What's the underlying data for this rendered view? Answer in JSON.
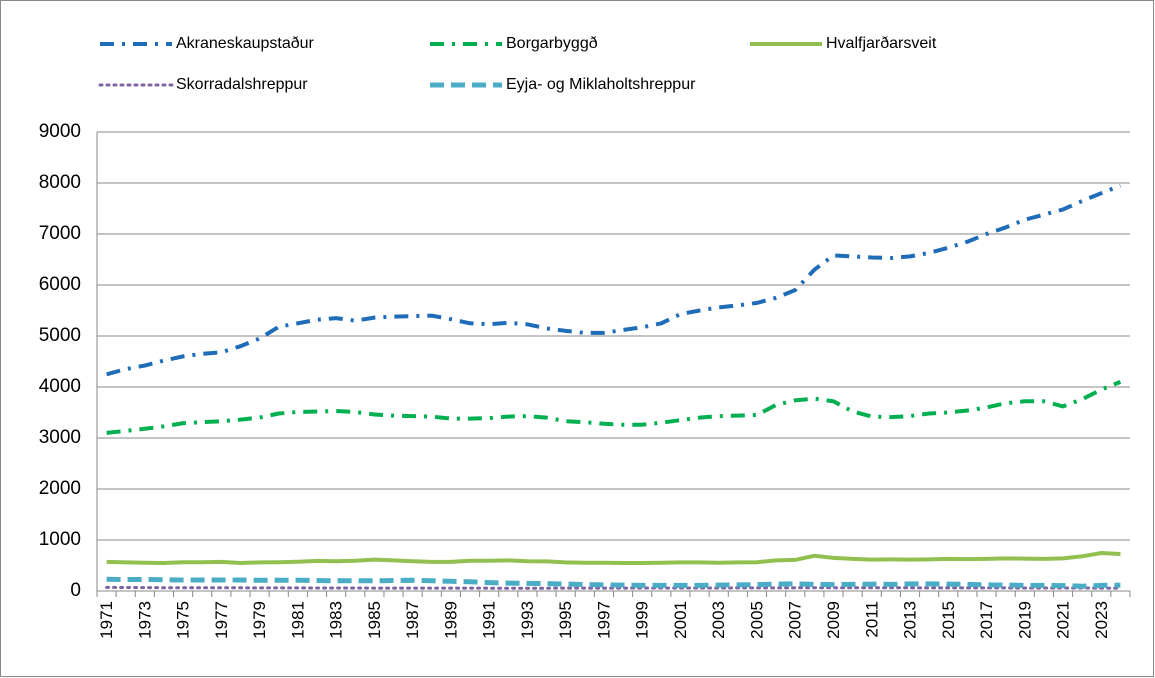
{
  "chart_data": {
    "type": "line",
    "categories": [
      "1971",
      null,
      "1973",
      null,
      "1975",
      null,
      "1977",
      null,
      "1979",
      null,
      "1981",
      null,
      "1983",
      null,
      "1985",
      null,
      "1987",
      null,
      "1989",
      null,
      "1991",
      null,
      "1993",
      null,
      "1995",
      null,
      "1997",
      null,
      "1999",
      null,
      "2001",
      null,
      "2003",
      null,
      "2005",
      null,
      "2007",
      null,
      "2009",
      null,
      "2011",
      null,
      "2013",
      null,
      "2015",
      null,
      "2017",
      null,
      "2019",
      null,
      "2021",
      null,
      "2023",
      null
    ],
    "series": [
      {
        "name": "Akraneskaupstaður",
        "color": "#1f6cb8",
        "line_style": "dash-dot",
        "values": [
          4250,
          4350,
          4420,
          4520,
          4600,
          4650,
          4680,
          4800,
          4950,
          5180,
          5250,
          5320,
          5350,
          5300,
          5360,
          5380,
          5390,
          5400,
          5330,
          5250,
          5230,
          5260,
          5230,
          5150,
          5100,
          5060,
          5060,
          5120,
          5170,
          5250,
          5430,
          5500,
          5560,
          5600,
          5650,
          5750,
          5900,
          6300,
          6580,
          6560,
          6540,
          6530,
          6560,
          6630,
          6730,
          6850,
          7000,
          7130,
          7280,
          7380,
          7480,
          7650,
          7800,
          7950
        ]
      },
      {
        "name": "Borgarbyggð",
        "color": "#00b050",
        "line_style": "dash-dot",
        "values": [
          3100,
          3140,
          3180,
          3230,
          3290,
          3310,
          3330,
          3360,
          3400,
          3480,
          3510,
          3520,
          3530,
          3510,
          3460,
          3440,
          3430,
          3420,
          3380,
          3380,
          3390,
          3420,
          3430,
          3400,
          3330,
          3310,
          3280,
          3260,
          3260,
          3300,
          3350,
          3400,
          3430,
          3440,
          3450,
          3650,
          3740,
          3770,
          3720,
          3520,
          3420,
          3410,
          3430,
          3480,
          3500,
          3540,
          3600,
          3680,
          3720,
          3720,
          3620,
          3760,
          3950,
          4100
        ]
      },
      {
        "name": "Hvalfjarðarsveit",
        "color": "#92c050",
        "line_style": "solid",
        "values": [
          570,
          560,
          555,
          550,
          565,
          565,
          570,
          550,
          560,
          565,
          575,
          590,
          585,
          595,
          615,
          600,
          585,
          570,
          570,
          595,
          595,
          600,
          585,
          580,
          560,
          555,
          555,
          550,
          550,
          555,
          560,
          560,
          555,
          560,
          565,
          600,
          610,
          690,
          650,
          630,
          615,
          620,
          615,
          620,
          630,
          625,
          630,
          640,
          635,
          630,
          640,
          680,
          745,
          725
        ]
      },
      {
        "name": "Skorradalshreppur",
        "color": "#8064a2",
        "line_style": "dot",
        "values": [
          70,
          68,
          66,
          65,
          64,
          63,
          62,
          62,
          61,
          60,
          60,
          59,
          58,
          58,
          57,
          57,
          57,
          56,
          56,
          56,
          55,
          55,
          55,
          55,
          56,
          56,
          57,
          57,
          58,
          58,
          58,
          58,
          59,
          60,
          60,
          61,
          62,
          63,
          64,
          64,
          63,
          62,
          62,
          61,
          61,
          60,
          60,
          60,
          59,
          59,
          58,
          58,
          57,
          57
        ]
      },
      {
        "name": "Eyja- og Miklaholtshreppur",
        "color": "#4bacc6",
        "line_style": "dash",
        "values": [
          230,
          225,
          225,
          220,
          215,
          215,
          215,
          215,
          210,
          210,
          210,
          205,
          200,
          200,
          200,
          205,
          210,
          200,
          190,
          180,
          165,
          155,
          150,
          145,
          135,
          125,
          120,
          115,
          110,
          110,
          110,
          110,
          115,
          120,
          125,
          135,
          140,
          130,
          125,
          130,
          135,
          130,
          140,
          140,
          135,
          130,
          120,
          115,
          110,
          110,
          105,
          95,
          110,
          115
        ]
      }
    ],
    "ylim": [
      0,
      9000
    ],
    "yticks": [
      0,
      1000,
      2000,
      3000,
      4000,
      5000,
      6000,
      7000,
      8000,
      9000
    ],
    "grid": true,
    "legend": "top"
  }
}
